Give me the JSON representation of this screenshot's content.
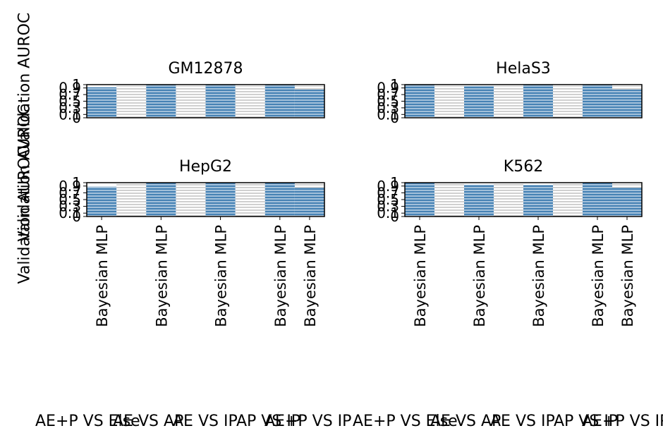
{
  "figure": {
    "ylabels": [
      "Validation AUROC",
      "Validation AUROC",
      "Validation AUROC"
    ]
  },
  "chart_data": [
    {
      "type": "bar",
      "title": "GM12878",
      "categories": [
        "AE+P VS Else",
        "AE VS AP",
        "AE VS IP",
        "AP VS IP",
        "AE+P VS IP"
      ],
      "tick_labels": [
        "Bayesian MLP",
        "Bayesian MLP",
        "Bayesian MLP",
        "Bayesian MLP",
        "Bayesian MLP"
      ],
      "series": [
        {
          "values": [
            0.92,
            1.0,
            1.0,
            1.0,
            0.85
          ]
        }
      ],
      "yticks": [
        "0",
        "0.1",
        "0.3",
        "0.5",
        "0.7",
        "0.9",
        "1"
      ],
      "ylim": [
        0,
        1
      ],
      "bar_color": "#4682b4",
      "hatch": "horizontal"
    },
    {
      "type": "bar",
      "title": "HelaS3",
      "categories": [
        "AE+P VS Else",
        "AE VS AP",
        "AE VS IP",
        "AP VS IP",
        "AE+P VS IP"
      ],
      "tick_labels": [],
      "series": [
        {
          "values": [
            1.0,
            0.97,
            1.0,
            1.0,
            0.85
          ]
        }
      ],
      "yticks": [
        "0",
        "0.1",
        "0.3",
        "0.5",
        "0.7",
        "0.9",
        "1"
      ],
      "ylim": [
        0,
        1
      ],
      "bar_color": "#4682b4",
      "hatch": "horizontal"
    },
    {
      "type": "bar",
      "title": "HepG2",
      "categories": [
        "AE+P VS Else",
        "AE VS AP",
        "AE VS IP",
        "AP VS IP",
        "AE+P VS IP"
      ],
      "tick_labels": [
        "Bayesian MLP",
        "Bayesian MLP",
        "Bayesian MLP",
        "Bayesian MLP",
        "Bayesian MLP"
      ],
      "series": [
        {
          "values": [
            0.88,
            1.0,
            1.0,
            1.0,
            0.85
          ]
        }
      ],
      "yticks": [
        "0",
        "0.1",
        "0.3",
        "0.5",
        "0.7",
        "0.9",
        "1"
      ],
      "ylim": [
        0,
        1
      ],
      "bar_color": "#4682b4",
      "hatch": "horizontal"
    },
    {
      "type": "bar",
      "title": "K562",
      "categories": [
        "AE+P VS Else",
        "AE VS AP",
        "AE VS IP",
        "AP VS IP",
        "AE+P VS IP"
      ],
      "tick_labels": [
        "Bayesian MLP",
        "Bayesian MLP",
        "Bayesian MLP",
        "Bayesian MLP",
        "Bayesian MLP"
      ],
      "series": [
        {
          "values": [
            1.0,
            0.95,
            0.93,
            1.0,
            0.85
          ]
        }
      ],
      "yticks": [
        "0",
        "0.1",
        "0.3",
        "0.5",
        "0.7",
        "0.9",
        "1"
      ],
      "ylim": [
        0,
        1
      ],
      "bar_color": "#4682b4",
      "hatch": "horizontal"
    }
  ],
  "group_labels_left": [
    "AE+P VS Else",
    "AE VS AP",
    "AE VS IP",
    "AP VS IP",
    "AE+P VS IP"
  ],
  "group_labels_right": [
    "AE+P VS Else",
    "AE VS AP",
    "AE VS IP",
    "AP VS IP",
    "AE+P VS IP"
  ]
}
